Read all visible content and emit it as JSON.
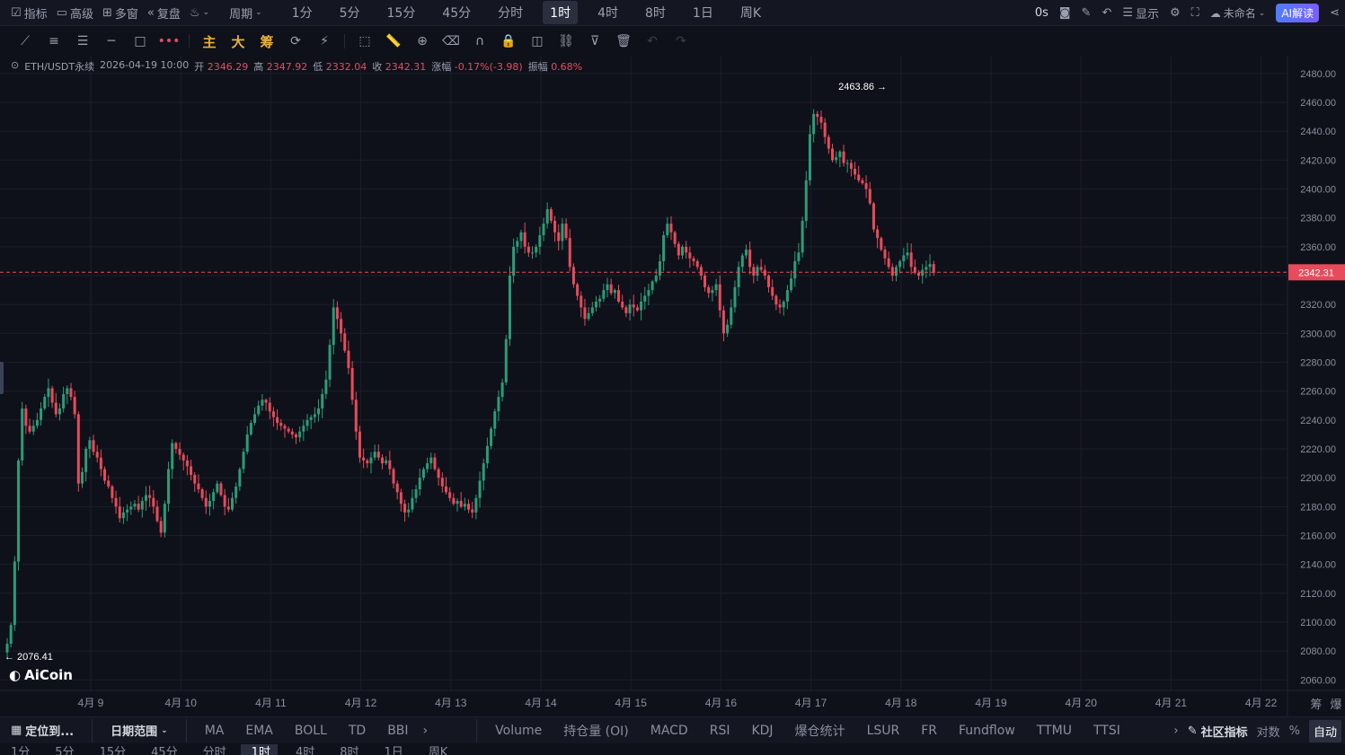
{
  "topbar": {
    "left_items": [
      {
        "icon": "indicator-icon",
        "label": "指标"
      },
      {
        "icon": "advanced-icon",
        "label": "高级"
      },
      {
        "icon": "multi-window-icon",
        "label": "多窗"
      },
      {
        "icon": "replay-icon",
        "label": "复盘"
      },
      {
        "icon": "candle-type-icon",
        "label": ""
      },
      {
        "icon": "",
        "label": "周期"
      }
    ],
    "periods": [
      "1分",
      "5分",
      "15分",
      "45分",
      "分时",
      "1时",
      "4时",
      "8时",
      "1日",
      "周K"
    ],
    "active_period": "1时",
    "right": {
      "countdown": "0s",
      "display_label": "显示",
      "layout_name": "未命名",
      "ai_label": "AI解读"
    }
  },
  "drawbar": {
    "cn_tools": [
      "主",
      "大",
      "筹"
    ]
  },
  "info": {
    "symbol": "ETH/USDT永续",
    "datetime": "2026-04-19 10:00",
    "open_label": "开",
    "open": "2346.29",
    "high_label": "高",
    "high": "2347.92",
    "low_label": "低",
    "low": "2332.04",
    "close_label": "收",
    "close": "2342.31",
    "change_label": "涨幅",
    "change": "-0.17%(-3.98)",
    "amp_label": "振幅",
    "amp": "0.68%"
  },
  "logo": "AiCoin",
  "chart_data": {
    "type": "candlestick",
    "title": "",
    "xlabel": "",
    "ylabel": "",
    "ylim": [
      2054,
      2488
    ],
    "y_ticks": [
      "2480.00",
      "2460.00",
      "2440.00",
      "2420.00",
      "2400.00",
      "2380.00",
      "2360.00",
      "2340.00",
      "2320.00",
      "2300.00",
      "2280.00",
      "2260.00",
      "2240.00",
      "2220.00",
      "2200.00",
      "2180.00",
      "2160.00",
      "2140.00",
      "2120.00",
      "2100.00",
      "2080.00",
      "2060.00"
    ],
    "x_ticks": [
      "4月 9",
      "4月 10",
      "4月 11",
      "4月 12",
      "4月 13",
      "4月 14",
      "4月 15",
      "4月 16",
      "4月 17",
      "4月 18",
      "4月 19",
      "4月 20",
      "4月 21",
      "4月 22"
    ],
    "last_price": 2342.31,
    "last_price_label": "2342.31",
    "max_label": "2463.86",
    "min_label": "2076.41",
    "colors": {
      "up": "#2a9d78",
      "down": "#e84b5b",
      "grid": "#1a1e2b",
      "bg": "#0f111a"
    },
    "hourly_closes": [
      2085,
      2098,
      2142,
      2212,
      2248,
      2236,
      2232,
      2236,
      2240,
      2248,
      2256,
      2262,
      2252,
      2244,
      2248,
      2258,
      2262,
      2256,
      2244,
      2196,
      2204,
      2220,
      2226,
      2218,
      2214,
      2206,
      2198,
      2194,
      2186,
      2180,
      2172,
      2176,
      2178,
      2180,
      2182,
      2178,
      2184,
      2188,
      2186,
      2180,
      2170,
      2162,
      2182,
      2206,
      2224,
      2220,
      2216,
      2212,
      2208,
      2202,
      2196,
      2192,
      2186,
      2180,
      2184,
      2190,
      2196,
      2188,
      2180,
      2178,
      2186,
      2194,
      2206,
      2218,
      2230,
      2238,
      2244,
      2250,
      2254,
      2252,
      2246,
      2242,
      2238,
      2236,
      2234,
      2232,
      2230,
      2228,
      2232,
      2236,
      2240,
      2242,
      2244,
      2248,
      2258,
      2268,
      2292,
      2318,
      2310,
      2300,
      2288,
      2276,
      2254,
      2232,
      2214,
      2212,
      2210,
      2214,
      2218,
      2214,
      2210,
      2212,
      2206,
      2196,
      2190,
      2182,
      2176,
      2178,
      2186,
      2192,
      2200,
      2206,
      2210,
      2214,
      2206,
      2200,
      2194,
      2190,
      2186,
      2182,
      2184,
      2180,
      2182,
      2178,
      2176,
      2186,
      2198,
      2210,
      2222,
      2234,
      2246,
      2256,
      2266,
      2296,
      2340,
      2360,
      2364,
      2370,
      2360,
      2356,
      2356,
      2360,
      2368,
      2376,
      2386,
      2378,
      2370,
      2364,
      2376,
      2366,
      2346,
      2334,
      2326,
      2318,
      2310,
      2314,
      2318,
      2322,
      2324,
      2330,
      2334,
      2328,
      2330,
      2322,
      2318,
      2314,
      2320,
      2318,
      2316,
      2322,
      2326,
      2330,
      2336,
      2340,
      2350,
      2368,
      2376,
      2370,
      2362,
      2354,
      2360,
      2356,
      2352,
      2350,
      2346,
      2340,
      2332,
      2328,
      2330,
      2334,
      2316,
      2300,
      2306,
      2318,
      2332,
      2346,
      2354,
      2358,
      2346,
      2340,
      2346,
      2344,
      2340,
      2332,
      2326,
      2320,
      2318,
      2322,
      2330,
      2338,
      2350,
      2356,
      2378,
      2406,
      2438,
      2452,
      2450,
      2446,
      2436,
      2428,
      2420,
      2422,
      2426,
      2418,
      2418,
      2414,
      2410,
      2406,
      2404,
      2400,
      2390,
      2372,
      2366,
      2358,
      2352,
      2346,
      2340,
      2346,
      2350,
      2354,
      2356,
      2346,
      2342,
      2340,
      2344,
      2346,
      2348,
      2342
    ]
  },
  "bottombar": {
    "locate_label": "定位到...",
    "date_range_label": "日期范围",
    "main_indicators": [
      "MA",
      "EMA",
      "BOLL",
      "TD",
      "BBI"
    ],
    "sub_indicators": [
      "Volume",
      "持仓量 (OI)",
      "MACD",
      "RSI",
      "KDJ",
      "爆仓统计",
      "LSUR",
      "FR",
      "Fundflow",
      "TTMU",
      "TTSI"
    ],
    "community_label": "社区指标",
    "log_label": "对数",
    "percent_label": "%",
    "auto_label": "自动"
  },
  "bottombar2": {
    "periods": [
      "1分",
      "5分",
      "15分",
      "45分",
      "分时",
      "1时",
      "4时",
      "8时",
      "1日",
      "周K"
    ],
    "active": "1时"
  },
  "right_axis_extra": [
    "筹",
    "爆"
  ]
}
